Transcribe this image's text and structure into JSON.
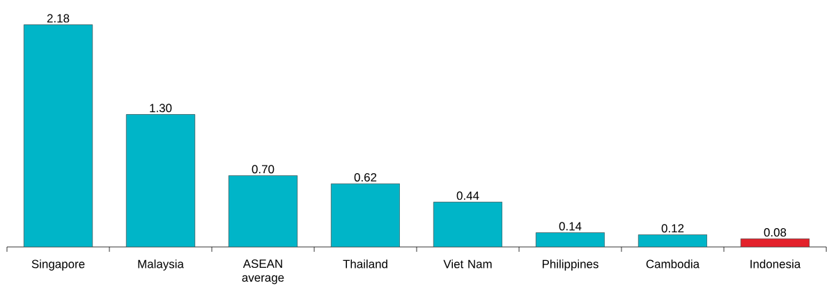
{
  "chart_data": {
    "type": "bar",
    "categories": [
      "Singapore",
      "Malaysia",
      "ASEAN average",
      "Thailand",
      "Viet Nam",
      "Philippines",
      "Cambodia",
      "Indonesia"
    ],
    "values": [
      2.18,
      1.3,
      0.7,
      0.62,
      0.44,
      0.14,
      0.12,
      0.08
    ],
    "value_labels": [
      "2.18",
      "1.30",
      "0.70",
      "0.62",
      "0.44",
      "0.14",
      "0.12",
      "0.08"
    ],
    "colors": [
      "#00b5c8",
      "#00b5c8",
      "#00b5c8",
      "#00b5c8",
      "#00b5c8",
      "#00b5c8",
      "#00b5c8",
      "#e3212b"
    ]
  }
}
